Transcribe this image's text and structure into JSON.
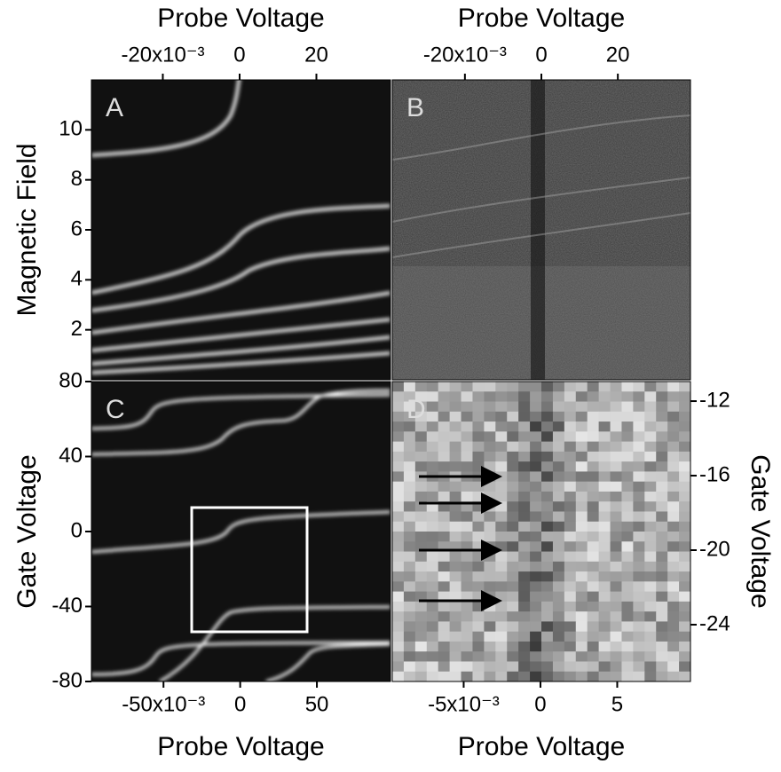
{
  "chart_data": [
    {
      "type": "heatmap",
      "panel_label": "A",
      "xlabel": "Probe Voltage",
      "ylabel": "Magnetic Field",
      "xaxis": "top",
      "yaxis": "left",
      "xlim": [
        -0.0386,
        0.0393
      ],
      "xticks": [
        {
          "value": -0.02,
          "label": "-20x10⁻³"
        },
        0,
        {
          "value": 0.02,
          "label": "20"
        }
      ],
      "ylim": [
        0,
        12
      ],
      "yticks": [
        2,
        4,
        6,
        8,
        10
      ]
    },
    {
      "type": "heatmap",
      "panel_label": "B",
      "xlabel": "Probe Voltage",
      "xaxis": "top",
      "xlim": [
        -0.039,
        0.039
      ],
      "xticks": [
        {
          "value": -0.02,
          "label": "-20x10⁻³"
        },
        0,
        {
          "value": 0.02,
          "label": "20"
        }
      ]
    },
    {
      "type": "heatmap",
      "panel_label": "C",
      "xlabel": "Probe Voltage",
      "ylabel": "Gate Voltage",
      "xaxis": "bottom",
      "yaxis": "left",
      "xlim": [
        -0.097,
        0.098
      ],
      "xticks": [
        {
          "value": -0.05,
          "label": "-50x10⁻³"
        },
        0,
        {
          "value": 0.05,
          "label": "50"
        }
      ],
      "ylim": [
        -80,
        80
      ],
      "yticks": [
        -80,
        -40,
        0,
        40,
        80
      ]
    },
    {
      "type": "heatmap",
      "panel_label": "D",
      "xlabel": "Probe Voltage",
      "ylabel": "Gate Voltage",
      "xaxis": "bottom",
      "yaxis": "right",
      "xlim": [
        -0.00965,
        0.00977
      ],
      "xticks": [
        {
          "value": -0.005,
          "label": "-5x10⁻³"
        },
        0,
        {
          "value": 0.005,
          "label": "5"
        }
      ],
      "ylim": [
        -27.05,
        -10.95
      ],
      "yticks": [
        -24,
        -20,
        -16,
        -12
      ]
    }
  ]
}
